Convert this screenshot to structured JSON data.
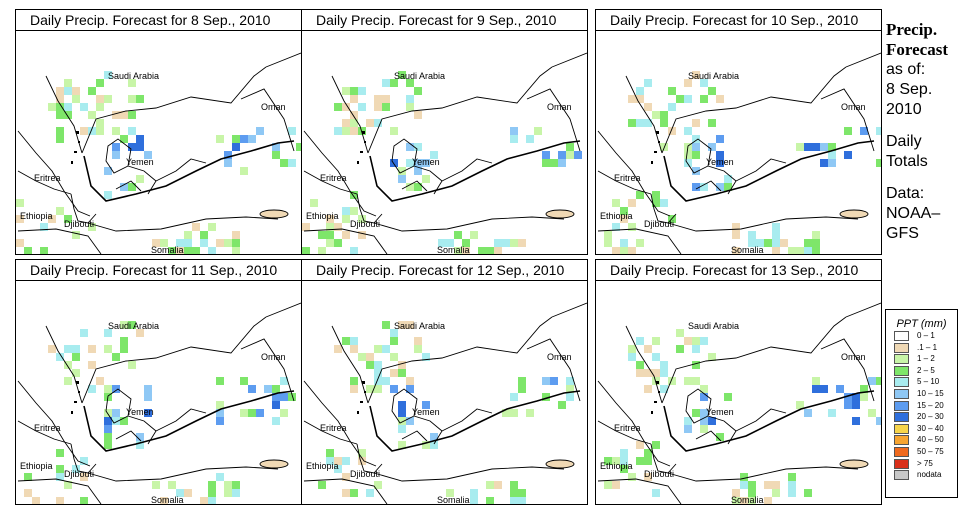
{
  "panels": [
    {
      "title": "Daily Precip. Forecast for  8 Sep., 2010",
      "labels": {
        "saudi": "Saudi Arabia",
        "oman": "Oman",
        "yemen": "Yemen",
        "eritrea": "Eritrea",
        "ethiopia": "Ethiopia",
        "djibouti": "Djibouti",
        "somalia": "Somalia"
      }
    },
    {
      "title": "Daily Precip. Forecast for  9 Sep., 2010",
      "labels": {
        "saudi": "Saudi Arabia",
        "oman": "Oman",
        "yemen": "Yemen",
        "eritrea": "Eritrea",
        "ethiopia": "Ethiopia",
        "djibouti": "Djibouti",
        "somalia": "Somalia"
      }
    },
    {
      "title": "Daily Precip. Forecast for  10 Sep., 2010",
      "labels": {
        "saudi": "Saudi Arabia",
        "oman": "Oman",
        "yemen": "Yemen",
        "eritrea": "Eritrea",
        "ethiopia": "Ethiopia",
        "djibouti": "Djibouti",
        "somalia": "Somalia"
      }
    },
    {
      "title": "Daily Precip. Forecast for  11 Sep., 2010",
      "labels": {
        "saudi": "Saudi Arabia",
        "oman": "Oman",
        "yemen": "Yemen",
        "eritrea": "Eritrea",
        "ethiopia": "Ethiopia",
        "djibouti": "Djibouti",
        "somalia": "Somalia"
      }
    },
    {
      "title": "Daily Precip. Forecast for  12 Sep., 2010",
      "labels": {
        "saudi": "Saudi Arabia",
        "oman": "Oman",
        "yemen": "Yemen",
        "eritrea": "Eritrea",
        "ethiopia": "Ethiopia",
        "djibouti": "Djibouti",
        "somalia": "Somalia"
      }
    },
    {
      "title": "Daily Precip. Forecast for  13 Sep., 2010",
      "labels": {
        "saudi": "Saudi Arabia",
        "oman": "Oman",
        "yemen": "Yemen",
        "eritrea": "Eritrea",
        "ethiopia": "Ethiopia",
        "djibouti": "Djibouti",
        "somalia": "Somalia"
      }
    }
  ],
  "sidebar": {
    "title_line1": "Precip.",
    "title_line2": "Forecast",
    "asof_line1": "as of:",
    "asof_line2": "8 Sep.",
    "asof_line3": "2010",
    "totals_line1": "Daily",
    "totals_line2": "Totals",
    "data_line1": "Data:",
    "data_line2": "NOAA–",
    "data_line3": "GFS"
  },
  "legend": {
    "title": "PPT (mm)",
    "items": [
      {
        "label": "0 – 1",
        "color": "#ffffff"
      },
      {
        "label": ".1 – 1",
        "color": "#f0d9b5"
      },
      {
        "label": "1 – 2",
        "color": "#c8f5a8"
      },
      {
        "label": "2 – 5",
        "color": "#7ee66a"
      },
      {
        "label": "5 – 10",
        "color": "#a8ecef"
      },
      {
        "label": "10 – 15",
        "color": "#8fc8f5"
      },
      {
        "label": "15 – 20",
        "color": "#5d9cf0"
      },
      {
        "label": "20 – 30",
        "color": "#2f6fdc"
      },
      {
        "label": "30 – 40",
        "color": "#f7d54a"
      },
      {
        "label": "40 – 50",
        "color": "#f7a531"
      },
      {
        "label": "50 – 75",
        "color": "#f06a1e"
      },
      {
        "label": "> 75",
        "color": "#d9301a"
      },
      {
        "label": "nodata",
        "color": "#c8c8c8"
      }
    ]
  }
}
